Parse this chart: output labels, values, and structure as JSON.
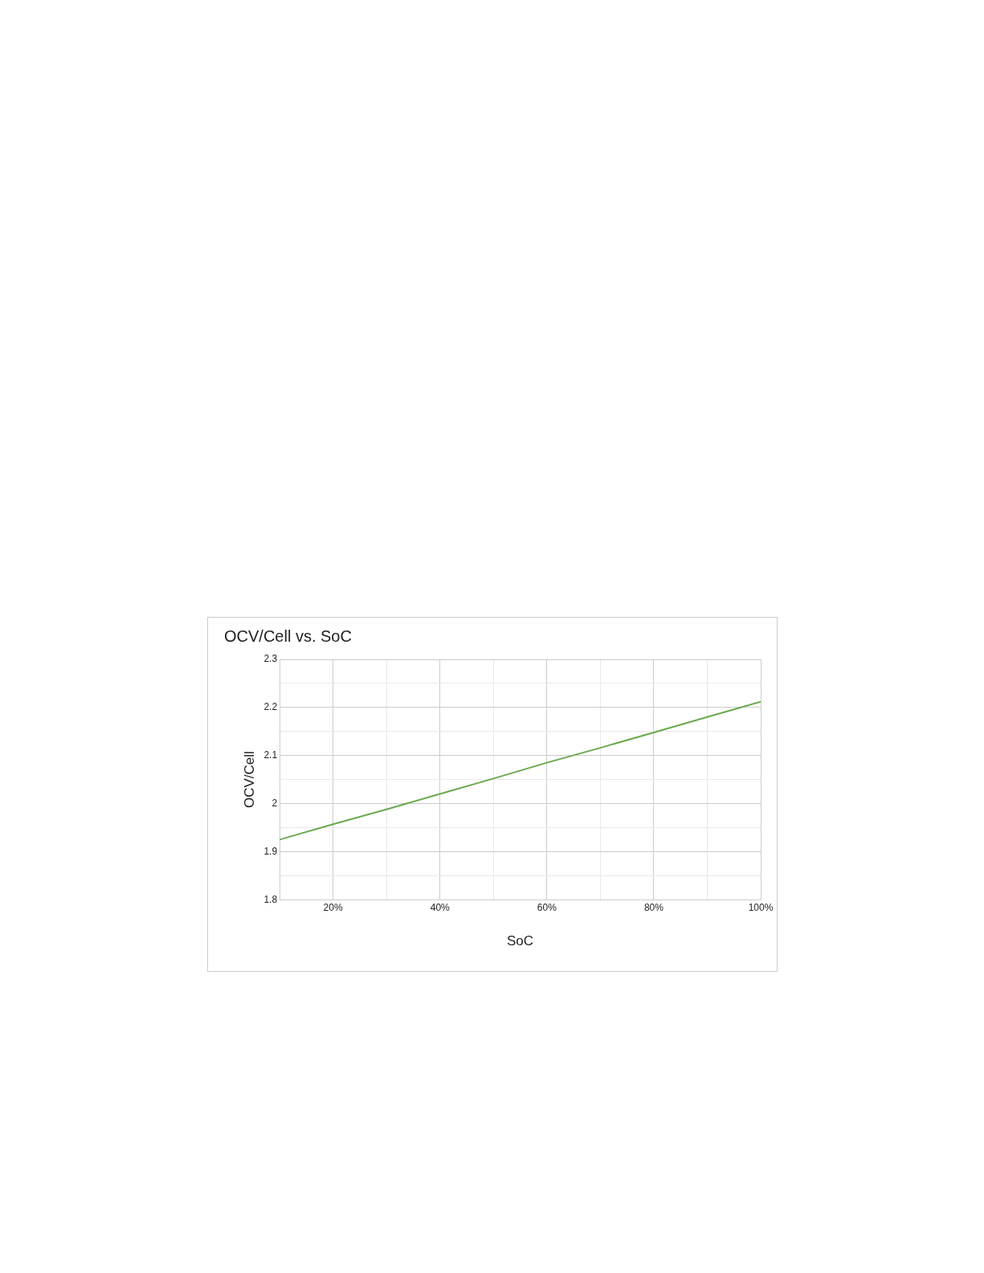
{
  "chart_data": {
    "type": "line",
    "title": "OCV/Cell vs. SoC",
    "xlabel": "SoC",
    "ylabel": "OCV/Cell",
    "x": [
      10,
      20,
      30,
      40,
      50,
      60,
      70,
      80,
      90,
      100
    ],
    "series": [
      {
        "color": "#6aa84f",
        "values": [
          1.925,
          1.957,
          1.988,
          2.02,
          2.052,
          2.085,
          2.116,
          2.148,
          2.18,
          2.212
        ]
      }
    ],
    "xlim": [
      10,
      100
    ],
    "xticks": [
      {
        "value": 20,
        "label": "20%"
      },
      {
        "value": 30,
        "label": null
      },
      {
        "value": 40,
        "label": "40%"
      },
      {
        "value": 50,
        "label": null
      },
      {
        "value": 60,
        "label": "60%"
      },
      {
        "value": 70,
        "label": null
      },
      {
        "value": 80,
        "label": "80%"
      },
      {
        "value": 90,
        "label": null
      },
      {
        "value": 100,
        "label": "100%"
      }
    ],
    "ylim": [
      1.8,
      2.3
    ],
    "yticks": [
      1.8,
      {
        "value": 1.85,
        "label": null
      },
      1.9,
      {
        "value": 1.95,
        "label": null
      },
      2,
      {
        "value": 2.05,
        "label": null
      },
      2.1,
      {
        "value": 2.15,
        "label": null
      },
      2.2,
      {
        "value": 2.25,
        "label": null
      },
      2.3
    ],
    "grid": true,
    "legend": false,
    "marker": "none",
    "line_style": "solid"
  }
}
